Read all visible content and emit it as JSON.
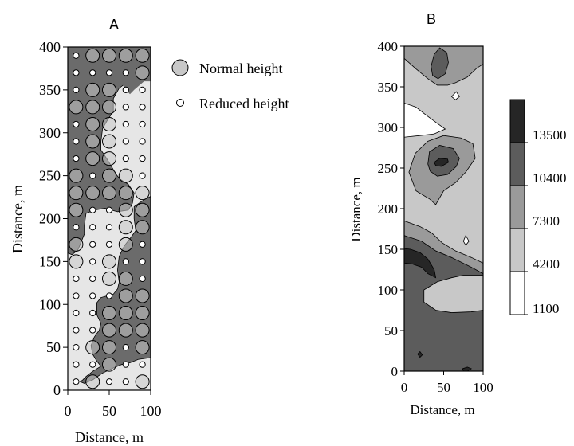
{
  "chart_data": [
    {
      "panel": "A",
      "type": "scatter",
      "title": "A",
      "xlabel": "Distance, m",
      "ylabel": "Distance, m",
      "xlim": [
        0,
        100
      ],
      "ylim": [
        0,
        400
      ],
      "xticks": [
        0,
        50,
        100
      ],
      "yticks": [
        0,
        50,
        100,
        150,
        200,
        250,
        300,
        350,
        400
      ],
      "grid_x": [
        10,
        30,
        50,
        70,
        90
      ],
      "grid_y": [
        10,
        30,
        50,
        70,
        90,
        110,
        130,
        150,
        170,
        190,
        210,
        230,
        250,
        270,
        290,
        310,
        330,
        350,
        370,
        390
      ],
      "series": [
        {
          "name": "Normal height",
          "symbol": "large-circle",
          "points": [
            [
              30,
              390
            ],
            [
              50,
              390
            ],
            [
              70,
              390
            ],
            [
              90,
              390
            ],
            [
              90,
              370
            ],
            [
              30,
              350
            ],
            [
              50,
              350
            ],
            [
              10,
              330
            ],
            [
              30,
              330
            ],
            [
              50,
              330
            ],
            [
              30,
              310
            ],
            [
              50,
              310
            ],
            [
              30,
              290
            ],
            [
              50,
              290
            ],
            [
              30,
              270
            ],
            [
              50,
              270
            ],
            [
              10,
              250
            ],
            [
              50,
              250
            ],
            [
              70,
              250
            ],
            [
              10,
              230
            ],
            [
              30,
              230
            ],
            [
              50,
              230
            ],
            [
              70,
              230
            ],
            [
              90,
              230
            ],
            [
              10,
              210
            ],
            [
              70,
              210
            ],
            [
              90,
              210
            ],
            [
              70,
              190
            ],
            [
              90,
              190
            ],
            [
              10,
              170
            ],
            [
              70,
              170
            ],
            [
              10,
              150
            ],
            [
              50,
              150
            ],
            [
              50,
              130
            ],
            [
              70,
              130
            ],
            [
              70,
              110
            ],
            [
              90,
              110
            ],
            [
              50,
              90
            ],
            [
              70,
              90
            ],
            [
              90,
              90
            ],
            [
              50,
              70
            ],
            [
              70,
              70
            ],
            [
              90,
              70
            ],
            [
              50,
              50
            ],
            [
              90,
              50
            ],
            [
              30,
              50
            ],
            [
              50,
              30
            ],
            [
              30,
              10
            ],
            [
              90,
              10
            ]
          ]
        },
        {
          "name": "Reduced height",
          "symbol": "small-circle",
          "points": [
            [
              10,
              390
            ],
            [
              10,
              370
            ],
            [
              30,
              370
            ],
            [
              50,
              370
            ],
            [
              70,
              370
            ],
            [
              10,
              350
            ],
            [
              70,
              350
            ],
            [
              90,
              350
            ],
            [
              70,
              330
            ],
            [
              90,
              330
            ],
            [
              10,
              310
            ],
            [
              70,
              310
            ],
            [
              90,
              310
            ],
            [
              10,
              290
            ],
            [
              70,
              290
            ],
            [
              90,
              290
            ],
            [
              10,
              270
            ],
            [
              70,
              270
            ],
            [
              90,
              270
            ],
            [
              30,
              250
            ],
            [
              90,
              250
            ],
            [
              10,
              190
            ],
            [
              30,
              190
            ],
            [
              50,
              190
            ],
            [
              30,
              210
            ],
            [
              50,
              210
            ],
            [
              30,
              170
            ],
            [
              50,
              170
            ],
            [
              90,
              170
            ],
            [
              30,
              150
            ],
            [
              70,
              150
            ],
            [
              90,
              150
            ],
            [
              10,
              130
            ],
            [
              30,
              130
            ],
            [
              90,
              130
            ],
            [
              10,
              110
            ],
            [
              30,
              110
            ],
            [
              50,
              110
            ],
            [
              10,
              90
            ],
            [
              30,
              90
            ],
            [
              10,
              70
            ],
            [
              30,
              70
            ],
            [
              10,
              50
            ],
            [
              70,
              50
            ],
            [
              10,
              30
            ],
            [
              30,
              30
            ],
            [
              70,
              30
            ],
            [
              90,
              30
            ],
            [
              10,
              10
            ],
            [
              50,
              10
            ],
            [
              70,
              10
            ]
          ]
        }
      ],
      "legend": {
        "placement": "right",
        "items": [
          {
            "label": "Normal height",
            "symbol": "large-circle"
          },
          {
            "label": "Reduced height",
            "symbol": "small-circle"
          }
        ]
      },
      "colors": {
        "dark_region": "#6b6b6b",
        "light_region": "#e6e6e6",
        "marker_fill": "#c8c8c8"
      }
    },
    {
      "panel": "B",
      "type": "heatmap",
      "title": "B",
      "xlabel": "Distance, m",
      "ylabel": "Distance, m",
      "xlim": [
        0,
        100
      ],
      "ylim": [
        0,
        400
      ],
      "xticks": [
        0,
        50,
        100
      ],
      "yticks": [
        0,
        50,
        100,
        150,
        200,
        250,
        300,
        350,
        400
      ],
      "colorbar_ticks": [
        "13500",
        "10400",
        "7300",
        "4200",
        "1100"
      ],
      "levels": [
        {
          "from": 1100,
          "to": 4200,
          "color": "#ffffff"
        },
        {
          "from": 4200,
          "to": 7300,
          "color": "#c8c8c8"
        },
        {
          "from": 7300,
          "to": 10400,
          "color": "#9a9a9a"
        },
        {
          "from": 10400,
          "to": 13500,
          "color": "#5c5c5c"
        },
        {
          "from": 13500,
          "to": 16600,
          "color": "#262626"
        }
      ],
      "regions": [
        {
          "level": 1,
          "points": [
            [
              0,
              0
            ],
            [
              100,
              0
            ],
            [
              100,
              400
            ],
            [
              0,
              400
            ]
          ]
        },
        {
          "level": 3,
          "points": [
            [
              0,
              0
            ],
            [
              100,
              0
            ],
            [
              100,
              75
            ],
            [
              85,
              73
            ],
            [
              60,
              72
            ],
            [
              40,
              75
            ],
            [
              25,
              85
            ],
            [
              25,
              100
            ],
            [
              42,
              110
            ],
            [
              60,
              115
            ],
            [
              75,
              118
            ],
            [
              100,
              118
            ],
            [
              100,
              120
            ],
            [
              85,
              128
            ],
            [
              60,
              140
            ],
            [
              40,
              148
            ],
            [
              22,
              160
            ],
            [
              0,
              167
            ]
          ]
        },
        {
          "level": 2,
          "points": [
            [
              0,
              167
            ],
            [
              22,
              160
            ],
            [
              40,
              148
            ],
            [
              60,
              140
            ],
            [
              85,
              128
            ],
            [
              100,
              120
            ],
            [
              100,
              133
            ],
            [
              85,
              140
            ],
            [
              65,
              148
            ],
            [
              48,
              158
            ],
            [
              35,
              170
            ],
            [
              20,
              178
            ],
            [
              0,
              185
            ]
          ]
        },
        {
          "level": 4,
          "points": [
            [
              0,
              133
            ],
            [
              10,
              132
            ],
            [
              22,
              128
            ],
            [
              30,
              120
            ],
            [
              40,
              115
            ],
            [
              38,
              125
            ],
            [
              30,
              138
            ],
            [
              20,
              146
            ],
            [
              8,
              150
            ],
            [
              0,
              151
            ]
          ]
        },
        {
          "level": 4,
          "points": [
            [
              17,
              21
            ],
            [
              20,
              24
            ],
            [
              23,
              20
            ],
            [
              20,
              17
            ]
          ]
        },
        {
          "level": 4,
          "points": [
            [
              74,
              3
            ],
            [
              80,
              5
            ],
            [
              85,
              3
            ],
            [
              80,
              0
            ],
            [
              75,
              0
            ]
          ]
        },
        {
          "level": 2,
          "points": [
            [
              6,
              245
            ],
            [
              14,
              268
            ],
            [
              30,
              283
            ],
            [
              50,
              290
            ],
            [
              72,
              287
            ],
            [
              87,
              280
            ],
            [
              90,
              262
            ],
            [
              78,
              245
            ],
            [
              65,
              232
            ],
            [
              50,
              222
            ],
            [
              40,
              205
            ],
            [
              32,
              212
            ],
            [
              15,
              222
            ]
          ]
        },
        {
          "level": 3,
          "points": [
            [
              30,
              255
            ],
            [
              32,
              270
            ],
            [
              45,
              278
            ],
            [
              62,
              274
            ],
            [
              70,
              262
            ],
            [
              66,
              252
            ],
            [
              55,
              242
            ],
            [
              42,
              240
            ],
            [
              33,
              246
            ]
          ]
        },
        {
          "level": 4,
          "points": [
            [
              38,
              257
            ],
            [
              45,
              262
            ],
            [
              55,
              261
            ],
            [
              56,
              257
            ],
            [
              47,
              252
            ],
            [
              40,
              253
            ]
          ]
        },
        {
          "level": 0,
          "points": [
            [
              0,
              288
            ],
            [
              20,
              290
            ],
            [
              38,
              292
            ],
            [
              52,
              298
            ],
            [
              42,
              305
            ],
            [
              28,
              315
            ],
            [
              15,
              325
            ],
            [
              0,
              330
            ]
          ]
        },
        {
          "level": 2,
          "points": [
            [
              0,
              385
            ],
            [
              15,
              372
            ],
            [
              30,
              360
            ],
            [
              42,
              352
            ],
            [
              55,
              352
            ],
            [
              65,
              355
            ],
            [
              80,
              362
            ],
            [
              92,
              373
            ],
            [
              100,
              378
            ],
            [
              100,
              400
            ],
            [
              0,
              400
            ]
          ]
        },
        {
          "level": 3,
          "points": [
            [
              34,
              375
            ],
            [
              38,
              390
            ],
            [
              45,
              398
            ],
            [
              54,
              392
            ],
            [
              56,
              380
            ],
            [
              52,
              366
            ],
            [
              43,
              360
            ],
            [
              36,
              364
            ]
          ]
        },
        {
          "level": 0,
          "points": [
            [
              60,
              338
            ],
            [
              66,
              344
            ],
            [
              70,
              338
            ],
            [
              65,
              334
            ]
          ]
        },
        {
          "level": 0,
          "points": [
            [
              75,
              160
            ],
            [
              78,
              167
            ],
            [
              82,
              160
            ],
            [
              78,
              155
            ]
          ]
        }
      ]
    }
  ]
}
